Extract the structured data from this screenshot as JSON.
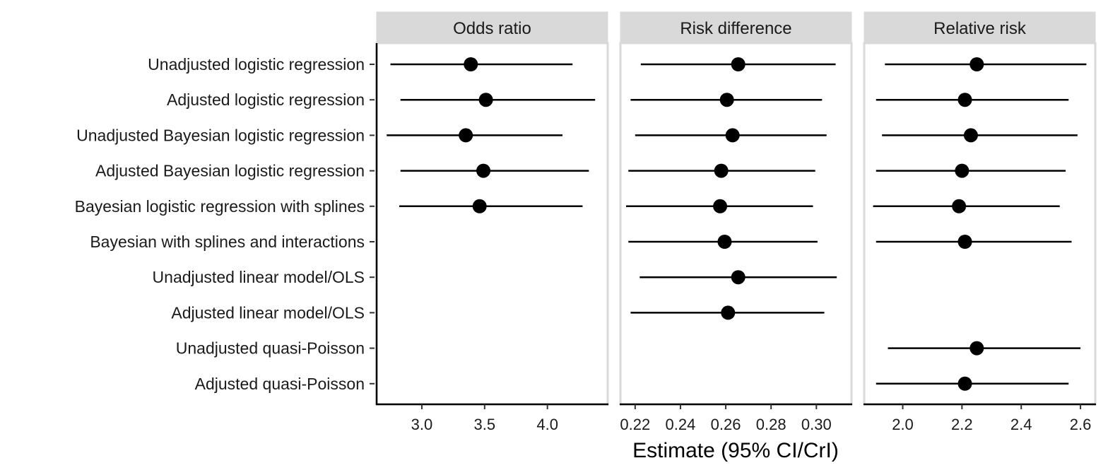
{
  "chart_data": {
    "type": "forest",
    "xlabel": "Estimate (95% CI/CrI)",
    "ylabel": "",
    "methods": [
      "Unadjusted logistic regression",
      "Adjusted logistic regression",
      "Unadjusted Bayesian logistic regression",
      "Adjusted Bayesian logistic regression",
      "Bayesian logistic regression with splines",
      "Bayesian with splines and interactions",
      "Unadjusted linear model/OLS",
      "Adjusted linear model/OLS",
      "Unadjusted quasi-Poisson",
      "Adjusted quasi-Poisson"
    ],
    "panels": [
      {
        "title": "Odds ratio",
        "xlim": [
          2.64,
          4.48
        ],
        "ticks": [
          3.0,
          3.5,
          4.0
        ],
        "tick_labels": [
          "3.0",
          "3.5",
          "4.0"
        ],
        "points": [
          {
            "method": "Unadjusted logistic regression",
            "estimate": 3.39,
            "lower": 2.75,
            "upper": 4.2
          },
          {
            "method": "Adjusted logistic regression",
            "estimate": 3.51,
            "lower": 2.83,
            "upper": 4.38
          },
          {
            "method": "Unadjusted Bayesian logistic regression",
            "estimate": 3.35,
            "lower": 2.72,
            "upper": 4.12
          },
          {
            "method": "Adjusted Bayesian logistic regression",
            "estimate": 3.49,
            "lower": 2.83,
            "upper": 4.33
          },
          {
            "method": "Bayesian logistic regression with splines",
            "estimate": 3.46,
            "lower": 2.82,
            "upper": 4.28
          }
        ]
      },
      {
        "title": "Risk difference",
        "xlim": [
          0.2135,
          0.3155
        ],
        "ticks": [
          0.22,
          0.24,
          0.26,
          0.28,
          0.3
        ],
        "tick_labels": [
          "0.22",
          "0.24",
          "0.26",
          "0.28",
          "0.30"
        ],
        "points": [
          {
            "method": "Unadjusted logistic regression",
            "estimate": 0.2655,
            "lower": 0.2225,
            "upper": 0.3085
          },
          {
            "method": "Adjusted logistic regression",
            "estimate": 0.2605,
            "lower": 0.218,
            "upper": 0.3025
          },
          {
            "method": "Unadjusted Bayesian logistic regression",
            "estimate": 0.263,
            "lower": 0.22,
            "upper": 0.3045
          },
          {
            "method": "Adjusted Bayesian logistic regression",
            "estimate": 0.258,
            "lower": 0.217,
            "upper": 0.2995
          },
          {
            "method": "Bayesian logistic regression with splines",
            "estimate": 0.2575,
            "lower": 0.216,
            "upper": 0.2985
          },
          {
            "method": "Bayesian with splines and interactions",
            "estimate": 0.2595,
            "lower": 0.217,
            "upper": 0.3005
          },
          {
            "method": "Unadjusted linear model/OLS",
            "estimate": 0.2655,
            "lower": 0.222,
            "upper": 0.309
          },
          {
            "method": "Adjusted linear model/OLS",
            "estimate": 0.261,
            "lower": 0.218,
            "upper": 0.3035
          }
        ]
      },
      {
        "title": "Relative risk",
        "xlim": [
          1.87,
          2.65
        ],
        "ticks": [
          2.0,
          2.2,
          2.4,
          2.6
        ],
        "tick_labels": [
          "2.0",
          "2.2",
          "2.4",
          "2.6"
        ],
        "points": [
          {
            "method": "Unadjusted logistic regression",
            "estimate": 2.25,
            "lower": 1.94,
            "upper": 2.62
          },
          {
            "method": "Adjusted logistic regression",
            "estimate": 2.21,
            "lower": 1.91,
            "upper": 2.56
          },
          {
            "method": "Unadjusted Bayesian logistic regression",
            "estimate": 2.23,
            "lower": 1.93,
            "upper": 2.59
          },
          {
            "method": "Adjusted Bayesian logistic regression",
            "estimate": 2.2,
            "lower": 1.91,
            "upper": 2.55
          },
          {
            "method": "Bayesian logistic regression with splines",
            "estimate": 2.19,
            "lower": 1.9,
            "upper": 2.53
          },
          {
            "method": "Bayesian with splines and interactions",
            "estimate": 2.21,
            "lower": 1.91,
            "upper": 2.57
          },
          {
            "method": "Unadjusted quasi-Poisson",
            "estimate": 2.25,
            "lower": 1.95,
            "upper": 2.6
          },
          {
            "method": "Adjusted quasi-Poisson",
            "estimate": 2.21,
            "lower": 1.91,
            "upper": 2.56
          }
        ]
      }
    ]
  }
}
